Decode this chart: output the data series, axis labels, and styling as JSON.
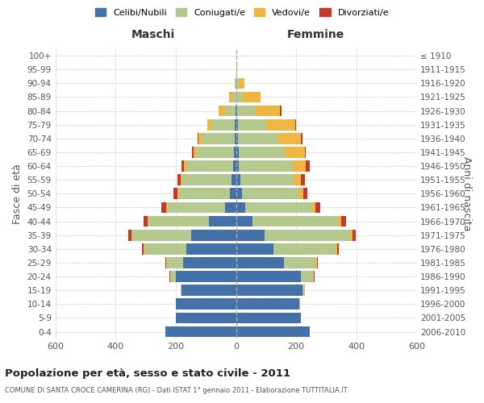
{
  "age_groups": [
    "100+",
    "95-99",
    "90-94",
    "85-89",
    "80-84",
    "75-79",
    "70-74",
    "65-69",
    "60-64",
    "55-59",
    "50-54",
    "45-49",
    "40-44",
    "35-39",
    "30-34",
    "25-29",
    "20-24",
    "15-19",
    "10-14",
    "5-9",
    "0-4"
  ],
  "birth_years": [
    "≤ 1910",
    "1911-1915",
    "1916-1920",
    "1921-1925",
    "1926-1930",
    "1931-1935",
    "1936-1940",
    "1941-1945",
    "1946-1950",
    "1951-1955",
    "1956-1960",
    "1961-1965",
    "1966-1970",
    "1971-1975",
    "1976-1980",
    "1981-1985",
    "1986-1990",
    "1991-1995",
    "1996-2000",
    "2001-2005",
    "2006-2010"
  ],
  "males": {
    "celibe": [
      0,
      0,
      0,
      0,
      2,
      4,
      5,
      7,
      10,
      14,
      20,
      35,
      90,
      150,
      165,
      175,
      200,
      180,
      200,
      200,
      235
    ],
    "coniugato": [
      0,
      0,
      3,
      12,
      35,
      78,
      110,
      125,
      155,
      165,
      170,
      195,
      200,
      195,
      140,
      55,
      18,
      4,
      0,
      0,
      0
    ],
    "vedovo": [
      0,
      0,
      2,
      10,
      20,
      12,
      10,
      10,
      7,
      5,
      4,
      3,
      3,
      2,
      2,
      2,
      1,
      0,
      0,
      0,
      0
    ],
    "divorziato": [
      0,
      0,
      0,
      0,
      0,
      0,
      3,
      3,
      10,
      10,
      14,
      14,
      14,
      10,
      5,
      2,
      1,
      0,
      0,
      0,
      0
    ]
  },
  "females": {
    "nubile": [
      0,
      0,
      0,
      2,
      4,
      6,
      6,
      8,
      10,
      14,
      20,
      32,
      55,
      95,
      125,
      160,
      215,
      220,
      210,
      215,
      245
    ],
    "coniugata": [
      0,
      2,
      8,
      20,
      58,
      95,
      135,
      155,
      180,
      178,
      188,
      220,
      285,
      285,
      205,
      105,
      42,
      10,
      4,
      0,
      0
    ],
    "vedova": [
      0,
      3,
      20,
      60,
      85,
      95,
      75,
      65,
      42,
      24,
      15,
      12,
      10,
      7,
      5,
      3,
      2,
      0,
      0,
      0,
      0
    ],
    "divorziata": [
      0,
      0,
      0,
      0,
      3,
      3,
      5,
      5,
      12,
      12,
      14,
      16,
      16,
      12,
      6,
      3,
      1,
      0,
      0,
      0,
      0
    ]
  },
  "colors": {
    "celibe": "#4472a8",
    "coniugato": "#b5c98e",
    "vedovo": "#f0b642",
    "divorziato": "#c0392b"
  },
  "xlim": 600,
  "title": "Popolazione per età, sesso e stato civile - 2011",
  "subtitle": "COMUNE DI SANTA CROCE CAMERINA (RG) - Dati ISTAT 1° gennaio 2011 - Elaborazione TUTTITALIA.IT",
  "ylabel": "Fasce di età",
  "ylabel_right": "Anni di nascita",
  "xlabel_left": "Maschi",
  "xlabel_right": "Femmine",
  "legend_labels": [
    "Celibi/Nubili",
    "Coniugati/e",
    "Vedovi/e",
    "Divorziati/e"
  ],
  "background_color": "#ffffff",
  "grid_color": "#cccccc"
}
